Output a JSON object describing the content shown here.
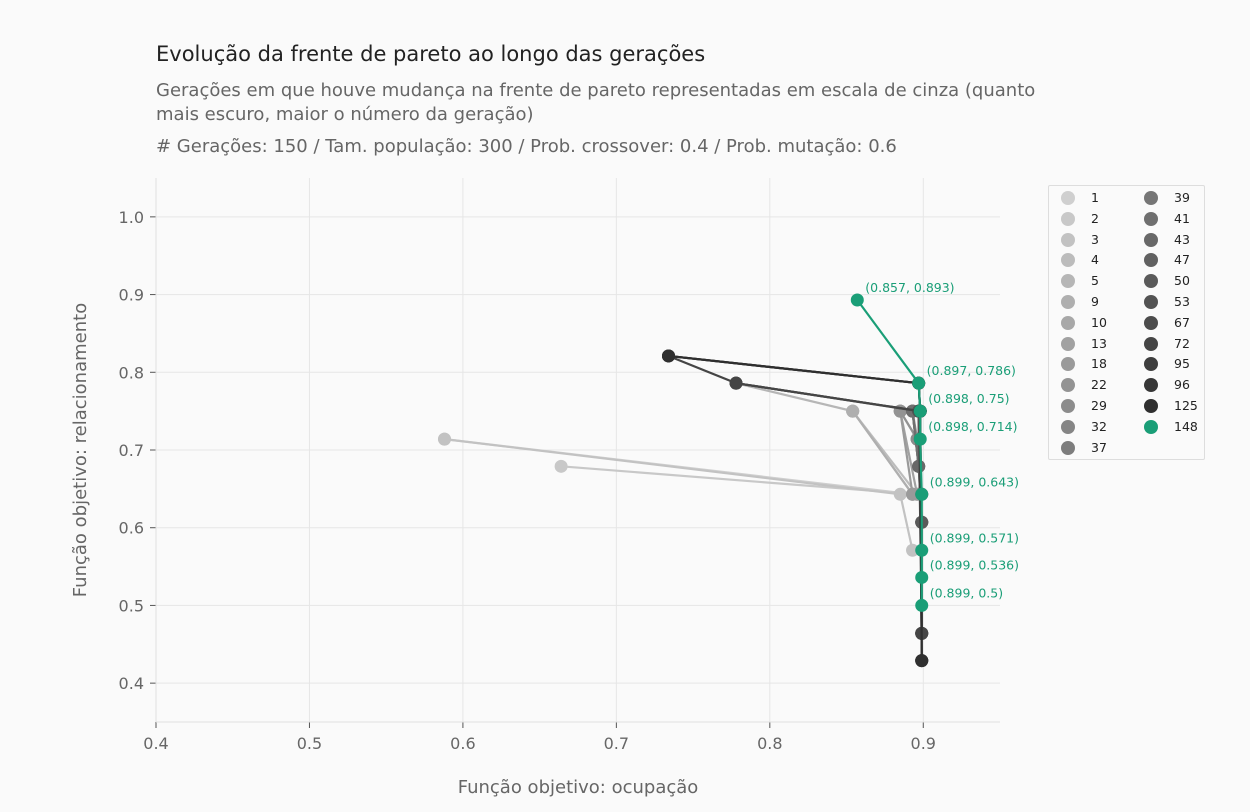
{
  "header": {
    "title": "Evolução da frente de pareto ao longo das gerações",
    "subtitle": "Gerações em que houve mudança na frente de pareto representadas em escala de cinza (quanto mais escuro, maior o número da geração)",
    "params": "# Gerações: 150 / Tam. população: 300 / Prob. crossover: 0.4 / Prob. mutação: 0.6"
  },
  "chart_data": {
    "type": "line",
    "xlabel": "Função objetivo: ocupação",
    "ylabel": "Função objetivo: relacionamento",
    "xlim": [
      0.4,
      0.95
    ],
    "ylim": [
      0.35,
      1.05
    ],
    "xticks": [
      0.4,
      0.5,
      0.6,
      0.7,
      0.8,
      0.9
    ],
    "yticks": [
      0.4,
      0.5,
      0.6,
      0.7,
      0.8,
      0.9,
      1.0
    ],
    "xtick_labels": [
      "0.4",
      "0.5",
      "0.6",
      "0.7",
      "0.8",
      "0.9"
    ],
    "ytick_labels": [
      "0.4",
      "0.5",
      "0.6",
      "0.7",
      "0.8",
      "0.9",
      "1.0"
    ],
    "grid": true,
    "legend_position": "right",
    "highlight_color": "#1a9e77",
    "series": [
      {
        "name": "1",
        "color": "#cfcfcf",
        "points": [
          [
            0.588,
            0.714
          ],
          [
            0.893,
            0.643
          ]
        ]
      },
      {
        "name": "2",
        "color": "#c8c8c8",
        "points": [
          [
            0.664,
            0.679
          ],
          [
            0.896,
            0.643
          ]
        ]
      },
      {
        "name": "3",
        "color": "#c2c2c2",
        "points": [
          [
            0.588,
            0.714
          ],
          [
            0.885,
            0.643
          ],
          [
            0.893,
            0.571
          ]
        ]
      },
      {
        "name": "4",
        "color": "#bcbcbc",
        "points": [
          [
            0.854,
            0.75
          ],
          [
            0.896,
            0.643
          ]
        ]
      },
      {
        "name": "5",
        "color": "#b6b6b6",
        "points": [
          [
            0.778,
            0.786
          ],
          [
            0.854,
            0.75
          ],
          [
            0.893,
            0.643
          ]
        ]
      },
      {
        "name": "9",
        "color": "#afafaf",
        "points": [
          [
            0.854,
            0.75
          ],
          [
            0.893,
            0.643
          ]
        ]
      },
      {
        "name": "10",
        "color": "#a8a8a8",
        "points": [
          [
            0.885,
            0.75
          ],
          [
            0.896,
            0.714
          ]
        ]
      },
      {
        "name": "13",
        "color": "#a1a1a1",
        "points": [
          [
            0.885,
            0.75
          ],
          [
            0.896,
            0.643
          ]
        ]
      },
      {
        "name": "18",
        "color": "#9a9a9a",
        "points": [
          [
            0.885,
            0.75
          ],
          [
            0.893,
            0.643
          ]
        ]
      },
      {
        "name": "22",
        "color": "#939393",
        "points": [
          [
            0.885,
            0.75
          ],
          [
            0.896,
            0.714
          ],
          [
            0.899,
            0.643
          ]
        ]
      },
      {
        "name": "29",
        "color": "#8c8c8c",
        "points": [
          [
            0.893,
            0.75
          ],
          [
            0.896,
            0.714
          ]
        ]
      },
      {
        "name": "32",
        "color": "#858585",
        "points": [
          [
            0.893,
            0.75
          ],
          [
            0.897,
            0.679
          ]
        ]
      },
      {
        "name": "37",
        "color": "#7d7d7d",
        "points": [
          [
            0.893,
            0.75
          ],
          [
            0.897,
            0.679
          ],
          [
            0.899,
            0.643
          ]
        ]
      },
      {
        "name": "39",
        "color": "#767676",
        "points": [
          [
            0.893,
            0.75
          ],
          [
            0.897,
            0.679
          ],
          [
            0.899,
            0.643
          ]
        ]
      },
      {
        "name": "41",
        "color": "#6f6f6f",
        "points": [
          [
            0.893,
            0.75
          ],
          [
            0.897,
            0.679
          ],
          [
            0.899,
            0.607
          ]
        ]
      },
      {
        "name": "43",
        "color": "#686868",
        "points": [
          [
            0.897,
            0.75
          ],
          [
            0.897,
            0.679
          ],
          [
            0.899,
            0.607
          ]
        ]
      },
      {
        "name": "47",
        "color": "#616161",
        "points": [
          [
            0.897,
            0.75
          ],
          [
            0.899,
            0.607
          ]
        ]
      },
      {
        "name": "50",
        "color": "#5a5a5a",
        "points": [
          [
            0.897,
            0.75
          ],
          [
            0.899,
            0.607
          ],
          [
            0.899,
            0.464
          ]
        ]
      },
      {
        "name": "53",
        "color": "#535353",
        "points": [
          [
            0.778,
            0.786
          ],
          [
            0.897,
            0.75
          ],
          [
            0.899,
            0.464
          ]
        ]
      },
      {
        "name": "67",
        "color": "#4c4c4c",
        "points": [
          [
            0.778,
            0.786
          ],
          [
            0.898,
            0.75
          ],
          [
            0.899,
            0.464
          ]
        ]
      },
      {
        "name": "72",
        "color": "#454545",
        "points": [
          [
            0.734,
            0.821
          ],
          [
            0.778,
            0.786
          ],
          [
            0.898,
            0.75
          ],
          [
            0.899,
            0.464
          ]
        ]
      },
      {
        "name": "95",
        "color": "#3e3e3e",
        "points": [
          [
            0.734,
            0.821
          ],
          [
            0.897,
            0.786
          ],
          [
            0.898,
            0.75
          ],
          [
            0.899,
            0.429
          ]
        ]
      },
      {
        "name": "96",
        "color": "#373737",
        "points": [
          [
            0.734,
            0.821
          ],
          [
            0.897,
            0.786
          ],
          [
            0.898,
            0.75
          ],
          [
            0.899,
            0.429
          ]
        ]
      },
      {
        "name": "125",
        "color": "#2f2f2f",
        "points": [
          [
            0.734,
            0.821
          ],
          [
            0.897,
            0.786
          ],
          [
            0.898,
            0.75
          ],
          [
            0.899,
            0.429
          ]
        ]
      },
      {
        "name": "148",
        "color": "#1a9e77",
        "points": [
          [
            0.857,
            0.893
          ],
          [
            0.897,
            0.786
          ],
          [
            0.898,
            0.75
          ],
          [
            0.898,
            0.714
          ],
          [
            0.899,
            0.643
          ],
          [
            0.899,
            0.571
          ],
          [
            0.899,
            0.536
          ],
          [
            0.899,
            0.5
          ]
        ]
      }
    ],
    "annotations": [
      {
        "x": 0.857,
        "y": 0.893,
        "text": "(0.857, 0.893)"
      },
      {
        "x": 0.897,
        "y": 0.786,
        "text": "(0.897, 0.786)"
      },
      {
        "x": 0.898,
        "y": 0.75,
        "text": "(0.898, 0.75)"
      },
      {
        "x": 0.898,
        "y": 0.714,
        "text": "(0.898, 0.714)"
      },
      {
        "x": 0.899,
        "y": 0.643,
        "text": "(0.899, 0.643)"
      },
      {
        "x": 0.899,
        "y": 0.571,
        "text": "(0.899, 0.571)"
      },
      {
        "x": 0.899,
        "y": 0.536,
        "text": "(0.899, 0.536)"
      },
      {
        "x": 0.899,
        "y": 0.5,
        "text": "(0.899, 0.5)"
      }
    ]
  }
}
